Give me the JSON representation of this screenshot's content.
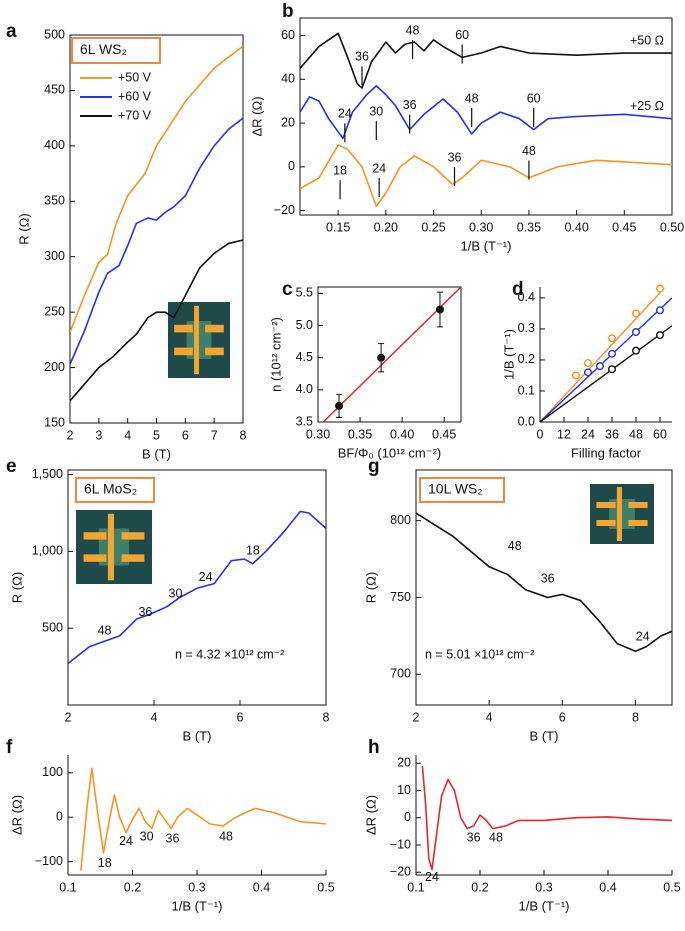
{
  "chart_data": [
    {
      "type": "line",
      "panel": "a",
      "title": "6L WS₂",
      "x_label": "B (T)",
      "y_label": "R (Ω)",
      "xlim": [
        2,
        8
      ],
      "ylim": [
        150,
        500
      ],
      "xticks": [
        2,
        3,
        4,
        5,
        6,
        7,
        8
      ],
      "yticks": [
        150,
        200,
        250,
        300,
        350,
        400,
        450,
        500
      ],
      "legend": "upper left",
      "series": [
        {
          "name": "+50 V",
          "color": "#f7941d",
          "x": [
            2,
            2.5,
            3,
            3.3,
            3.6,
            4,
            4.3,
            4.6,
            5,
            5.5,
            6,
            6.5,
            7,
            7.5,
            8
          ],
          "values": [
            232,
            265,
            295,
            302,
            330,
            355,
            365,
            375,
            400,
            420,
            440,
            455,
            470,
            480,
            490
          ]
        },
        {
          "name": "+60 V",
          "color": "#2630e8",
          "x": [
            2,
            2.5,
            3,
            3.3,
            3.7,
            4,
            4.3,
            4.7,
            5,
            5.3,
            5.6,
            6,
            6.5,
            7,
            7.5,
            8
          ],
          "values": [
            203,
            233,
            268,
            285,
            292,
            310,
            330,
            335,
            333,
            340,
            345,
            355,
            380,
            400,
            415,
            425
          ]
        },
        {
          "name": "+70 V",
          "color": "#111111",
          "x": [
            2,
            2.5,
            3,
            3.5,
            4,
            4.3,
            4.7,
            5,
            5.3,
            5.6,
            6,
            6.5,
            7,
            7.5,
            8
          ],
          "values": [
            170,
            185,
            200,
            210,
            223,
            230,
            245,
            250,
            250,
            245,
            265,
            290,
            303,
            312,
            315
          ]
        }
      ]
    },
    {
      "type": "line",
      "panel": "b",
      "x_label": "1/B (T⁻¹)",
      "y_label": "ΔR (Ω)",
      "xlim": [
        0.11,
        0.5
      ],
      "ylim": [
        -22,
        68
      ],
      "xticks": [
        0.15,
        {
          "value": 0.2,
          "label": "0.20"
        },
        0.25,
        {
          "value": 0.3,
          "label": "0.30"
        },
        0.35,
        {
          "value": 0.4,
          "label": "0.40"
        },
        0.45,
        {
          "value": 0.5,
          "label": "0.50"
        }
      ],
      "yticks": [
        {
          "value": -20,
          "label": "−20"
        },
        0,
        20,
        40,
        60
      ],
      "series": [
        {
          "name": "+50 Ω",
          "color": "#111111",
          "x": [
            0.11,
            0.13,
            0.15,
            0.16,
            0.17,
            0.175,
            0.185,
            0.2,
            0.21,
            0.22,
            0.23,
            0.24,
            0.25,
            0.26,
            0.28,
            0.3,
            0.32,
            0.35,
            0.4,
            0.45,
            0.5
          ],
          "values": [
            45,
            55,
            61,
            50,
            38,
            36,
            48,
            57,
            52,
            56,
            57,
            53,
            58,
            55,
            50,
            52,
            55,
            52,
            51,
            52,
            52
          ]
        },
        {
          "name": "+25 Ω",
          "color": "#2630e8",
          "x": [
            0.11,
            0.12,
            0.13,
            0.14,
            0.155,
            0.165,
            0.18,
            0.19,
            0.2,
            0.21,
            0.225,
            0.24,
            0.26,
            0.275,
            0.29,
            0.3,
            0.32,
            0.34,
            0.355,
            0.37,
            0.4,
            0.45,
            0.5
          ],
          "values": [
            25,
            32,
            30,
            22,
            13,
            25,
            33,
            37,
            33,
            28,
            17,
            24,
            31,
            25,
            15,
            20,
            25,
            22,
            17,
            22,
            23,
            24,
            22
          ]
        },
        {
          "color": "#f7941d",
          "x": [
            0.11,
            0.13,
            0.15,
            0.16,
            0.175,
            0.19,
            0.2,
            0.215,
            0.23,
            0.25,
            0.27,
            0.28,
            0.3,
            0.33,
            0.35,
            0.38,
            0.42,
            0.46,
            0.5
          ],
          "values": [
            -10,
            -5,
            10,
            8,
            0,
            -18,
            -12,
            0,
            5,
            0,
            -8,
            -5,
            3,
            0,
            -5,
            0,
            3,
            2,
            1
          ]
        }
      ],
      "annotations": [
        {
          "text": "36",
          "x": 0.175,
          "y": 50
        },
        {
          "text": "48",
          "x": 0.228,
          "y": 62
        },
        {
          "text": "60",
          "x": 0.28,
          "y": 60
        },
        {
          "text": "24",
          "x": 0.157,
          "y": 24
        },
        {
          "text": "30",
          "x": 0.19,
          "y": 25
        },
        {
          "text": "36",
          "x": 0.225,
          "y": 28
        },
        {
          "text": "48",
          "x": 0.29,
          "y": 31
        },
        {
          "text": "60",
          "x": 0.355,
          "y": 31
        },
        {
          "text": "18",
          "x": 0.152,
          "y": -2
        },
        {
          "text": "24",
          "x": 0.193,
          "y": -1
        },
        {
          "text": "36",
          "x": 0.272,
          "y": 4
        },
        {
          "text": "48",
          "x": 0.35,
          "y": 7
        }
      ]
    },
    {
      "type": "scatter",
      "panel": "c",
      "x_label": "BF/Φ₀ (10¹² cm⁻²)",
      "y_label": "n (10¹² cm⁻²)",
      "xlim": [
        0.3,
        0.47
      ],
      "ylim": [
        3.5,
        5.6
      ],
      "xticks": [
        {
          "value": 0.3,
          "label": "0.30"
        },
        0.35,
        {
          "value": 0.4,
          "label": "0.40"
        },
        0.45
      ],
      "yticks": [
        3.5,
        {
          "value": 4,
          "label": "4.0"
        },
        4.5,
        {
          "value": 5,
          "label": "5.0"
        },
        5.5
      ],
      "series": [
        {
          "color": "#111111",
          "x": [
            0.325,
            0.375,
            0.445
          ],
          "values": [
            3.75,
            4.5,
            5.25
          ],
          "errors": [
            0.18,
            0.22,
            0.27
          ]
        }
      ],
      "fit": {
        "color": "#e0211f",
        "x": [
          0.3,
          0.47
        ],
        "values": [
          3.42,
          5.6
        ]
      }
    },
    {
      "type": "scatter",
      "panel": "d",
      "x_label": "Filling factor",
      "y_label": "1/B (T⁻¹)",
      "xlim": [
        0,
        66
      ],
      "ylim": [
        0,
        0.435
      ],
      "xticks": [
        0,
        12,
        24,
        36,
        48,
        60
      ],
      "yticks": [
        {
          "value": 0,
          "label": "0.0"
        },
        0.1,
        0.2,
        0.3,
        0.4
      ],
      "series": [
        {
          "color": "#f7941d",
          "x": [
            18,
            24,
            36,
            48,
            60
          ],
          "values": [
            0.15,
            0.19,
            0.27,
            0.35,
            0.43
          ],
          "fit": {
            "x": [
              0,
              62
            ],
            "values": [
              0,
              0.43
            ]
          }
        },
        {
          "color": "#2630e8",
          "x": [
            24,
            30,
            36,
            48,
            60
          ],
          "values": [
            0.16,
            0.18,
            0.22,
            0.29,
            0.36
          ],
          "fit": {
            "x": [
              0,
              66
            ],
            "values": [
              0,
              0.4
            ]
          }
        },
        {
          "color": "#111111",
          "x": [
            36,
            48,
            60
          ],
          "values": [
            0.17,
            0.23,
            0.28
          ],
          "fit": {
            "x": [
              0,
              66
            ],
            "values": [
              0,
              0.31
            ]
          }
        }
      ]
    },
    {
      "type": "line",
      "panel": "e",
      "title": "6L MoS₂",
      "x_label": "B (T)",
      "y_label": "R (Ω)",
      "xlim": [
        2,
        8
      ],
      "ylim": [
        0,
        1530
      ],
      "xticks": [
        2,
        4,
        6,
        8
      ],
      "yticks": [
        500,
        {
          "value": 1000,
          "label": "1,000"
        },
        {
          "value": 1500,
          "label": "1,500"
        }
      ],
      "series": [
        {
          "color": "#2630e8",
          "x": [
            2,
            2.5,
            2.8,
            3.2,
            3.6,
            3.9,
            4.3,
            4.6,
            5,
            5.4,
            5.8,
            6.1,
            6.3,
            6.6,
            7,
            7.4,
            7.6,
            8
          ],
          "values": [
            270,
            380,
            410,
            450,
            560,
            590,
            640,
            700,
            760,
            790,
            940,
            950,
            920,
            1000,
            1120,
            1260,
            1250,
            1150
          ]
        }
      ],
      "annotations": [
        {
          "text": "48",
          "x": 2.85,
          "y": 480
        },
        {
          "text": "36",
          "x": 3.8,
          "y": 600
        },
        {
          "text": "30",
          "x": 4.5,
          "y": 720
        },
        {
          "text": "24",
          "x": 5.2,
          "y": 830
        },
        {
          "text": "18",
          "x": 6.3,
          "y": 1000
        }
      ],
      "note": "n = 4.32 ×10¹² cm⁻²"
    },
    {
      "type": "line",
      "panel": "g",
      "title": "10L WS₂",
      "x_label": "B (T)",
      "y_label": "R (Ω)",
      "xlim": [
        2,
        9
      ],
      "ylim": [
        680,
        833
      ],
      "xticks": [
        2,
        4,
        6,
        8
      ],
      "yticks": [
        700,
        750,
        800
      ],
      "series": [
        {
          "color": "#111111",
          "x": [
            2,
            3,
            4,
            4.5,
            5,
            5.6,
            6,
            6.5,
            7,
            7.5,
            8,
            8.3,
            8.7,
            9
          ],
          "values": [
            805,
            790,
            770,
            765,
            755,
            750,
            752,
            748,
            735,
            720,
            715,
            718,
            725,
            728
          ]
        }
      ],
      "annotations": [
        {
          "text": "48",
          "x": 4.7,
          "y": 783
        },
        {
          "text": "36",
          "x": 5.6,
          "y": 762
        },
        {
          "text": "24",
          "x": 8.2,
          "y": 724
        }
      ],
      "note": "n = 5.01 ×10¹² cm⁻²"
    },
    {
      "type": "line",
      "panel": "f",
      "x_label": "1/B (T⁻¹)",
      "y_label": "ΔR (Ω)",
      "xlim": [
        0.1,
        0.5
      ],
      "ylim": [
        -130,
        140
      ],
      "xticks": [
        0.1,
        0.2,
        0.3,
        0.4,
        0.5
      ],
      "yticks": [
        {
          "value": -100,
          "label": "−100"
        },
        0,
        100
      ],
      "series": [
        {
          "color": "#f7941d",
          "x": [
            0.12,
            0.13,
            0.137,
            0.145,
            0.155,
            0.165,
            0.172,
            0.18,
            0.19,
            0.2,
            0.21,
            0.22,
            0.23,
            0.24,
            0.25,
            0.26,
            0.27,
            0.285,
            0.3,
            0.32,
            0.34,
            0.36,
            0.39,
            0.42,
            0.46,
            0.5
          ],
          "values": [
            -120,
            30,
            110,
            20,
            -80,
            0,
            50,
            0,
            -35,
            -5,
            20,
            -10,
            -25,
            15,
            -5,
            -25,
            0,
            20,
            5,
            -15,
            -20,
            0,
            20,
            10,
            -10,
            -15
          ]
        }
      ],
      "annotations": [
        {
          "text": "18",
          "x": 0.157,
          "y": -105
        },
        {
          "text": "24",
          "x": 0.19,
          "y": -55
        },
        {
          "text": "30",
          "x": 0.222,
          "y": -45
        },
        {
          "text": "36",
          "x": 0.262,
          "y": -50
        },
        {
          "text": "48",
          "x": 0.345,
          "y": -45
        }
      ]
    },
    {
      "type": "line",
      "panel": "h",
      "x_label": "1/B (T⁻¹)",
      "y_label": "ΔR (Ω)",
      "xlim": [
        0.1,
        0.5
      ],
      "ylim": [
        -21,
        23
      ],
      "xticks": [
        0.1,
        0.2,
        0.3,
        0.4,
        0.5
      ],
      "yticks": [
        {
          "value": -20,
          "label": "−20"
        },
        {
          "value": -10,
          "label": "−10"
        },
        0,
        10,
        20
      ],
      "series": [
        {
          "color": "#e8262b",
          "x": [
            0.11,
            0.115,
            0.12,
            0.125,
            0.13,
            0.14,
            0.15,
            0.16,
            0.17,
            0.18,
            0.19,
            0.2,
            0.21,
            0.22,
            0.24,
            0.26,
            0.3,
            0.35,
            0.4,
            0.45,
            0.5
          ],
          "values": [
            19,
            5,
            -15,
            -19,
            -10,
            8,
            14,
            10,
            0,
            -4,
            -3,
            1,
            -1,
            -4,
            -3,
            -1,
            -1,
            0,
            0.3,
            -0.5,
            -1
          ]
        }
      ],
      "annotations": [
        {
          "text": "24",
          "x": 0.125,
          "y": -22
        },
        {
          "text": "36",
          "x": 0.19,
          "y": -7.5
        },
        {
          "text": "48",
          "x": 0.225,
          "y": -7.5
        }
      ]
    }
  ]
}
